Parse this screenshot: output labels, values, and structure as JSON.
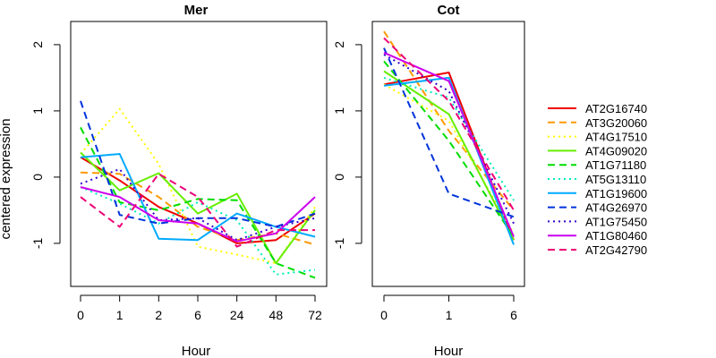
{
  "chart_data": [
    {
      "type": "line",
      "title": "Mer",
      "xlabel": "Hour",
      "ylabel": "centered expression",
      "categories": [
        "0",
        "1",
        "2",
        "6",
        "24",
        "48",
        "72"
      ],
      "yticks": [
        "-1",
        "0",
        "1",
        "2"
      ],
      "ylim": [
        -1.65,
        2.35
      ],
      "grid": false,
      "series": [
        {
          "name": "AT2G16740",
          "values": [
            0.3,
            -0.05,
            -0.45,
            -0.7,
            -1.0,
            -0.95,
            -0.55
          ]
        },
        {
          "name": "AT3G20060",
          "values": [
            0.07,
            0.05,
            -0.3,
            -0.75,
            -0.95,
            -0.85,
            -1.02
          ]
        },
        {
          "name": "AT4G17510",
          "values": [
            0.35,
            1.03,
            0.2,
            -1.05,
            -1.17,
            -1.3,
            -0.45
          ]
        },
        {
          "name": "AT4G09020",
          "values": [
            0.37,
            -0.2,
            0.06,
            -0.55,
            -0.25,
            -1.3,
            -0.5
          ]
        },
        {
          "name": "AT1G71180",
          "values": [
            0.75,
            -0.38,
            -0.5,
            -0.33,
            -0.35,
            -1.3,
            -1.52
          ]
        },
        {
          "name": "AT5G13110",
          "values": [
            -0.15,
            -0.4,
            -0.7,
            -0.38,
            -0.65,
            -1.47,
            -1.4
          ]
        },
        {
          "name": "AT1G19600",
          "values": [
            0.3,
            0.35,
            -0.93,
            -0.95,
            -0.55,
            -0.75,
            -0.9
          ]
        },
        {
          "name": "AT4G26970",
          "values": [
            1.15,
            -0.57,
            -0.7,
            -0.62,
            -0.62,
            -0.75,
            -0.55
          ]
        },
        {
          "name": "AT1G75450",
          "values": [
            -0.1,
            0.12,
            -0.65,
            -0.62,
            -0.95,
            -0.75,
            -0.62
          ]
        },
        {
          "name": "AT1G80460",
          "values": [
            -0.15,
            -0.3,
            -0.65,
            -0.7,
            -0.97,
            -0.85,
            -0.3
          ]
        },
        {
          "name": "AT2G42790",
          "values": [
            -0.3,
            -0.75,
            0.05,
            -0.3,
            -1.05,
            -0.8,
            -0.8
          ]
        }
      ]
    },
    {
      "type": "line",
      "title": "Cot",
      "xlabel": "Hour",
      "ylabel": "",
      "categories": [
        "0",
        "1",
        "6"
      ],
      "yticks": [
        "-1",
        "0",
        "1",
        "2"
      ],
      "ylim": [
        -1.65,
        2.35
      ],
      "grid": false,
      "series": [
        {
          "name": "AT2G16740",
          "values": [
            1.4,
            1.58,
            -0.95
          ]
        },
        {
          "name": "AT3G20060",
          "values": [
            2.2,
            0.7,
            -0.5
          ]
        },
        {
          "name": "AT4G17510",
          "values": [
            1.4,
            0.85,
            -0.85
          ]
        },
        {
          "name": "AT4G09020",
          "values": [
            1.6,
            0.95,
            -0.95
          ]
        },
        {
          "name": "AT1G71180",
          "values": [
            1.75,
            0.55,
            -0.9
          ]
        },
        {
          "name": "AT5G13110",
          "values": [
            1.5,
            1.2,
            -0.35
          ]
        },
        {
          "name": "AT1G19600",
          "values": [
            1.38,
            1.5,
            -1.02
          ]
        },
        {
          "name": "AT4G26970",
          "values": [
            1.95,
            -0.25,
            -0.6
          ]
        },
        {
          "name": "AT1G75450",
          "values": [
            1.85,
            1.3,
            -0.7
          ]
        },
        {
          "name": "AT1G80460",
          "values": [
            1.88,
            1.45,
            -0.9
          ]
        },
        {
          "name": "AT2G42790",
          "values": [
            2.1,
            1.15,
            -0.5
          ]
        }
      ]
    }
  ],
  "legend": {
    "placement": "right",
    "entries": [
      {
        "label": "AT2G16740",
        "color": "#ee0000",
        "dash": "solid"
      },
      {
        "label": "AT3G20060",
        "color": "#ff9900",
        "dash": "dashed"
      },
      {
        "label": "AT4G17510",
        "color": "#ffff00",
        "dash": "dotted"
      },
      {
        "label": "AT4G09020",
        "color": "#66ee00",
        "dash": "solid"
      },
      {
        "label": "AT1G71180",
        "color": "#00dd00",
        "dash": "dashed"
      },
      {
        "label": "AT5G13110",
        "color": "#00eebb",
        "dash": "dotted"
      },
      {
        "label": "AT1G19600",
        "color": "#00aaff",
        "dash": "solid"
      },
      {
        "label": "AT4G26970",
        "color": "#0033dd",
        "dash": "dashed"
      },
      {
        "label": "AT1G75450",
        "color": "#3300cc",
        "dash": "dotted"
      },
      {
        "label": "AT1G80460",
        "color": "#cc00ee",
        "dash": "solid"
      },
      {
        "label": "AT2G42790",
        "color": "#ee0077",
        "dash": "dashed"
      }
    ]
  }
}
